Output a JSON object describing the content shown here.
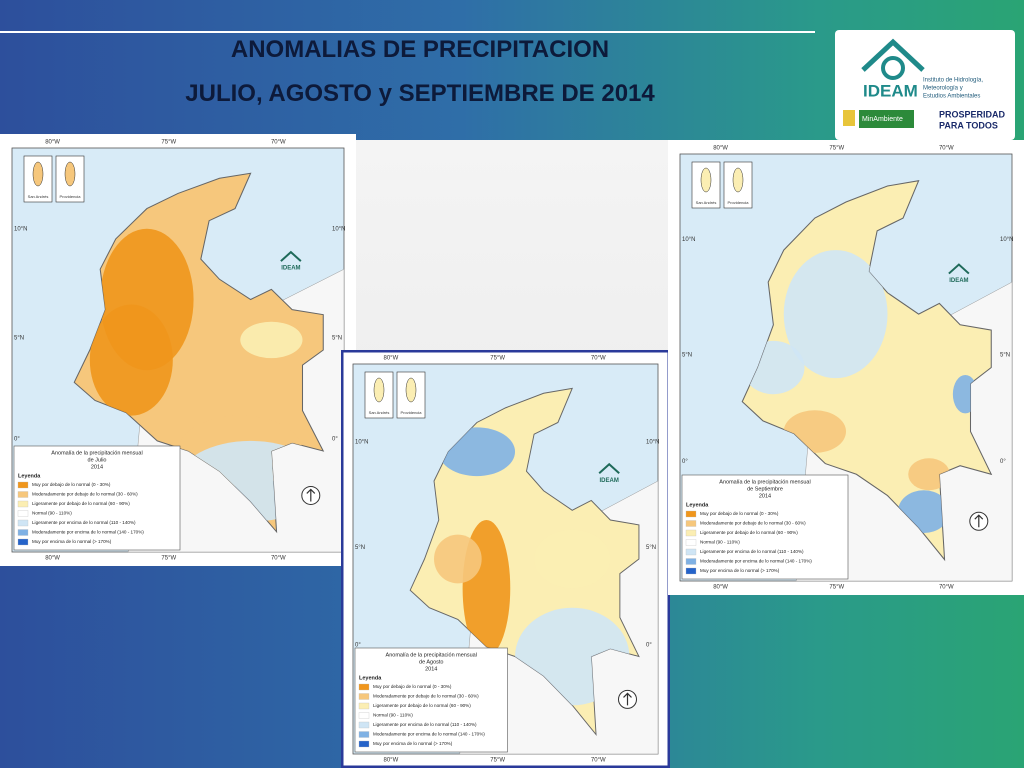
{
  "header": {
    "title_line1": "ANOMALIAS DE PRECIPITACION",
    "title_line2": "JULIO, AGOSTO y SEPTIEMBRE DE 2014"
  },
  "logo": {
    "name": "IDEAM",
    "institute": [
      "Instituto de Hidrología,",
      "Meteorología y",
      "Estudios Ambientales"
    ],
    "ministry": "MinAmbiente",
    "slogan": [
      "PROSPERIDAD",
      "PARA TODOS"
    ]
  },
  "map_common": {
    "lon_labels": [
      "80°W",
      "75°W",
      "70°W"
    ],
    "lat_labels": [
      "10°N",
      "5°N",
      "0°"
    ],
    "insets": [
      "San Andrés",
      "Providencia"
    ],
    "badge": "IDEAM",
    "legend_heading": "Leyenda",
    "legend": [
      {
        "label": "Muy por debajo de lo normal (0 - 30%)",
        "color": "#f0961c"
      },
      {
        "label": "Moderadamente por debajo de lo normal (30 - 60%)",
        "color": "#f6c77c"
      },
      {
        "label": "Ligeramente por debajo de lo normal (60 - 90%)",
        "color": "#fbeeb3"
      },
      {
        "label": "Normal (90 - 110%)",
        "color": "#ffffff"
      },
      {
        "label": "Ligeramente por encima de lo normal (110 - 140%)",
        "color": "#cfe5f5"
      },
      {
        "label": "Moderadamente por encima de lo normal (140 - 170%)",
        "color": "#7fb1e4"
      },
      {
        "label": "Muy por encima de lo normal (> 170%)",
        "color": "#2563c9"
      }
    ]
  },
  "maps": [
    {
      "title": "Anomalía de la precipitación mensual",
      "month": "de Julio",
      "year": "2014"
    },
    {
      "title": "Anomalía de la precipitación mensual",
      "month": "de Agosto",
      "year": "2014"
    },
    {
      "title": "Anomalía de la precipitación mensual",
      "month": "de Septiembre",
      "year": "2014"
    }
  ]
}
